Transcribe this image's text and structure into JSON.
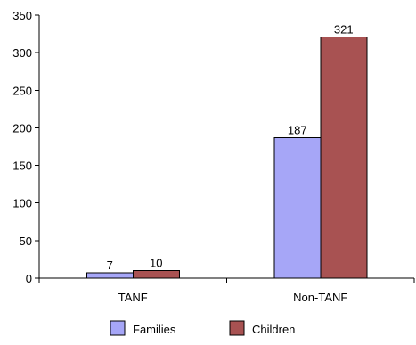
{
  "chart_data": {
    "type": "bar",
    "categories": [
      "TANF",
      "Non-TANF"
    ],
    "series": [
      {
        "name": "Families",
        "values": [
          7,
          187
        ],
        "color": "#a6a6f7"
      },
      {
        "name": "Children",
        "values": [
          10,
          321
        ],
        "color": "#a85252"
      }
    ],
    "ylim": [
      0,
      350
    ],
    "yticks": [
      0,
      50,
      100,
      150,
      200,
      250,
      300,
      350
    ],
    "grid": false,
    "legend_position": "bottom"
  }
}
